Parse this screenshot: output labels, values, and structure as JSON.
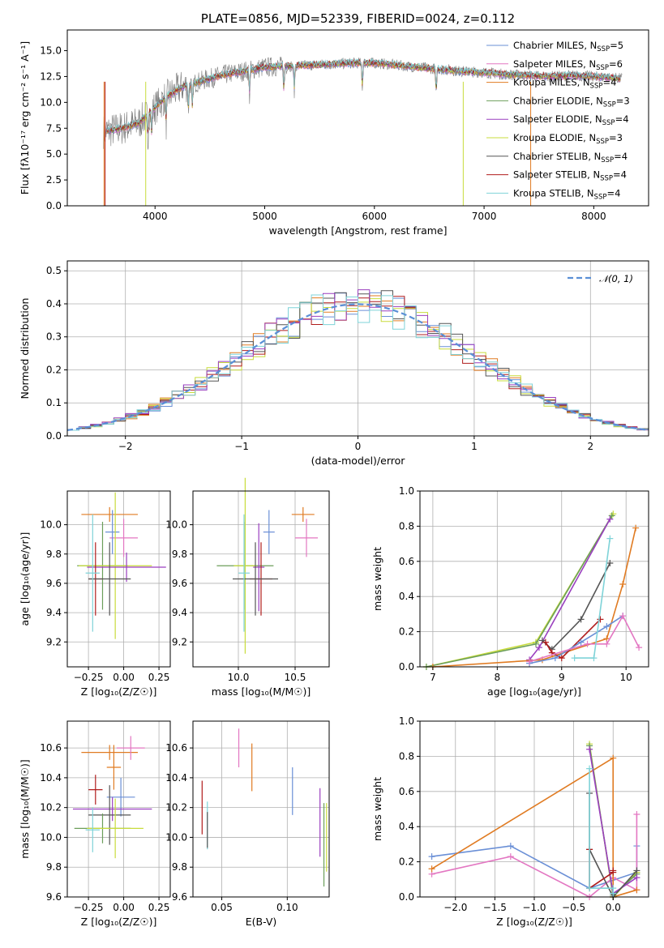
{
  "chart_data": [
    {
      "type": "line",
      "title": "PLATE=0856, MJD=52339, FIBERID=0024, z=0.112",
      "xlabel": "wavelength [Angstrom, rest frame]",
      "ylabel": "Flux [fλ10⁻¹⁷ erg cm⁻² s⁻¹ A⁻¹]",
      "xlim": [
        3200,
        8500
      ],
      "ylim": [
        0,
        17
      ],
      "xticks": [
        4000,
        5000,
        6000,
        7000,
        8000
      ],
      "yticks": [
        0.0,
        2.5,
        5.0,
        7.5,
        10.0,
        12.5,
        15.0
      ],
      "legend_position": "right",
      "spectrum_x": [
        3550,
        3700,
        3850,
        3950,
        4100,
        4250,
        4400,
        4600,
        4800,
        5000,
        5200,
        5400,
        5600,
        5800,
        6000,
        6200,
        6400,
        6600,
        6800,
        7000,
        7200,
        7400,
        7600,
        7800,
        8000,
        8250
      ],
      "spectrum_y": [
        7.2,
        7.5,
        8.0,
        9.0,
        10.5,
        11.5,
        12.0,
        12.6,
        13.0,
        13.4,
        13.5,
        13.6,
        13.7,
        13.8,
        13.8,
        13.6,
        13.4,
        13.2,
        13.0,
        12.9,
        12.7,
        12.6,
        12.5,
        12.6,
        12.5,
        12.3
      ],
      "series": [
        {
          "name": "Chabrier MILES, N",
          "sub": "SSP",
          "suffix": "=5",
          "color": "#6a8fd6"
        },
        {
          "name": "Salpeter MILES, N",
          "sub": "SSP",
          "suffix": "=6",
          "color": "#e377c2"
        },
        {
          "name": "Kroupa MILES, N",
          "sub": "SSP",
          "suffix": "=4",
          "color": "#e07b22"
        },
        {
          "name": "Chabrier ELODIE, N",
          "sub": "SSP",
          "suffix": "=3",
          "color": "#6b9e5a"
        },
        {
          "name": "Salpeter ELODIE, N",
          "sub": "SSP",
          "suffix": "=4",
          "color": "#9a3fbf"
        },
        {
          "name": "Kroupa ELODIE, N",
          "sub": "SSP",
          "suffix": "=3",
          "color": "#c8dc3c"
        },
        {
          "name": "Chabrier STELIB, N",
          "sub": "SSP",
          "suffix": "=4",
          "color": "#555555"
        },
        {
          "name": "Salpeter STELIB, N",
          "sub": "SSP",
          "suffix": "=4",
          "color": "#b01c1c"
        },
        {
          "name": "Kroupa STELIB, N",
          "sub": "SSP",
          "suffix": "=4",
          "color": "#7fd3d8"
        }
      ]
    },
    {
      "type": "histogram",
      "xlabel": "(data-model)/error",
      "ylabel": "Normed distribution",
      "xlim": [
        -2.5,
        2.5
      ],
      "ylim": [
        0,
        0.53
      ],
      "xticks": [
        -2,
        -1,
        0,
        1,
        2
      ],
      "xtick_labels": [
        "−2",
        "−1",
        "0",
        "1",
        "2"
      ],
      "yticks": [
        0.0,
        0.1,
        0.2,
        0.3,
        0.4,
        0.5
      ],
      "bin_width": 0.1,
      "bin_start": -2.5,
      "legend": "𝒩(0, 1)",
      "legend_position": "top-right",
      "gauss_color": "#5a8fd6",
      "hist_colors": [
        "#6a8fd6",
        "#e07b22",
        "#c8dc3c",
        "#b01c1c",
        "#555555",
        "#9a3fbf",
        "#7fd3d8"
      ]
    },
    {
      "type": "scatter-errorbar",
      "xlabel": "Z [log₁₀(Z/Z☉)]",
      "ylabel": "age  [log₁₀(age/yr)]",
      "xlim": [
        -0.4,
        0.33
      ],
      "ylim": [
        9.03,
        10.23
      ],
      "xticks": [
        -0.25,
        0.0,
        0.25
      ],
      "xtick_labels": [
        "−0.25",
        "0.00",
        "0.25"
      ],
      "yticks": [
        9.2,
        9.4,
        9.6,
        9.8,
        10.0
      ],
      "points": [
        {
          "x": -0.1,
          "y": 10.07,
          "xerr": 0.2,
          "yerr": 0.05,
          "color": "#e07b22"
        },
        {
          "x": 0.0,
          "y": 9.91,
          "xerr": 0.1,
          "yerr": 0.13,
          "color": "#e377c2"
        },
        {
          "x": -0.08,
          "y": 9.95,
          "xerr": 0.05,
          "yerr": 0.15,
          "color": "#6a8fd6"
        },
        {
          "x": -0.15,
          "y": 9.72,
          "xerr": 0.18,
          "yerr": 0.3,
          "color": "#6b9e5a"
        },
        {
          "x": -0.06,
          "y": 9.72,
          "xerr": 0.26,
          "yerr": 0.5,
          "color": "#c8dc3c"
        },
        {
          "x": 0.02,
          "y": 9.71,
          "xerr": 0.28,
          "yerr": 0.1,
          "color": "#9a3fbf"
        },
        {
          "x": -0.2,
          "y": 9.63,
          "xerr": 0.05,
          "yerr": 0.25,
          "color": "#b01c1c"
        },
        {
          "x": -0.1,
          "y": 9.63,
          "xerr": 0.15,
          "yerr": 0.25,
          "color": "#555555"
        },
        {
          "x": -0.22,
          "y": 9.67,
          "xerr": 0.05,
          "yerr": 0.4,
          "color": "#7fd3d8"
        }
      ]
    },
    {
      "type": "scatter-errorbar",
      "xlabel": "mass [log₁₀(M/M☉)]",
      "ylabel": "",
      "xlim": [
        9.6,
        10.8
      ],
      "ylim": [
        9.03,
        10.23
      ],
      "xticks": [
        10.0,
        10.5
      ],
      "xtick_labels": [
        "10.0",
        "10.5"
      ],
      "yticks": [
        9.2,
        9.4,
        9.6,
        9.8,
        10.0
      ],
      "points": [
        {
          "x": 10.57,
          "y": 10.07,
          "xerr": 0.1,
          "yerr": 0.05,
          "color": "#e07b22"
        },
        {
          "x": 10.6,
          "y": 9.91,
          "xerr": 0.1,
          "yerr": 0.13,
          "color": "#e377c2"
        },
        {
          "x": 10.27,
          "y": 9.95,
          "xerr": 0.05,
          "yerr": 0.15,
          "color": "#6a8fd6"
        },
        {
          "x": 10.06,
          "y": 9.72,
          "xerr": 0.25,
          "yerr": 0.3,
          "color": "#6b9e5a"
        },
        {
          "x": 10.06,
          "y": 9.72,
          "xerr": 0.1,
          "yerr": 0.6,
          "color": "#c8dc3c"
        },
        {
          "x": 10.18,
          "y": 9.71,
          "xerr": 0.05,
          "yerr": 0.3,
          "color": "#9a3fbf"
        },
        {
          "x": 10.2,
          "y": 9.63,
          "xerr": 0.1,
          "yerr": 0.25,
          "color": "#b01c1c"
        },
        {
          "x": 10.15,
          "y": 9.63,
          "xerr": 0.2,
          "yerr": 0.25,
          "color": "#555555"
        },
        {
          "x": 10.05,
          "y": 9.67,
          "xerr": 0.05,
          "yerr": 0.4,
          "color": "#7fd3d8"
        }
      ]
    },
    {
      "type": "line",
      "xlabel": "age  [log₁₀(age/yr)]",
      "ylabel": "mass weight",
      "xlim": [
        6.8,
        10.35
      ],
      "ylim": [
        0,
        1
      ],
      "xticks": [
        7,
        8,
        9,
        10
      ],
      "yticks": [
        0.0,
        0.2,
        0.4,
        0.6,
        0.8,
        1.0
      ],
      "series": [
        {
          "color": "#c8dc3c",
          "x": [
            6.9,
            8.6,
            9.8
          ],
          "y": [
            0.0,
            0.14,
            0.87
          ]
        },
        {
          "color": "#6b9e5a",
          "x": [
            6.9,
            8.6,
            9.78
          ],
          "y": [
            0.0,
            0.13,
            0.86
          ]
        },
        {
          "color": "#9a3fbf",
          "x": [
            8.5,
            8.65,
            9.75
          ],
          "y": [
            0.04,
            0.11,
            0.84
          ]
        },
        {
          "color": "#e07b22",
          "x": [
            7.0,
            8.7,
            9.7,
            9.95,
            10.15
          ],
          "y": [
            0.0,
            0.04,
            0.16,
            0.47,
            0.79
          ]
        },
        {
          "color": "#555555",
          "x": [
            8.7,
            8.85,
            9.3,
            9.75
          ],
          "y": [
            0.15,
            0.1,
            0.27,
            0.59
          ]
        },
        {
          "color": "#b01c1c",
          "x": [
            8.75,
            8.85,
            9.0,
            9.6
          ],
          "y": [
            0.14,
            0.08,
            0.05,
            0.27
          ]
        },
        {
          "color": "#6a8fd6",
          "x": [
            8.5,
            8.9,
            9.3,
            9.7,
            9.95
          ],
          "y": [
            0.02,
            0.05,
            0.14,
            0.23,
            0.29
          ]
        },
        {
          "color": "#e377c2",
          "x": [
            8.5,
            9.4,
            9.7,
            9.95,
            10.2
          ],
          "y": [
            0.03,
            0.13,
            0.13,
            0.29,
            0.11
          ]
        },
        {
          "color": "#7fd3d8",
          "x": [
            9.2,
            9.5,
            9.75
          ],
          "y": [
            0.05,
            0.05,
            0.73
          ]
        }
      ]
    },
    {
      "type": "scatter-errorbar",
      "xlabel": "Z [log₁₀(Z/Z☉)]",
      "ylabel": "mass [log₁₀(M/M☉)]",
      "xlim": [
        -0.4,
        0.33
      ],
      "ylim": [
        9.6,
        10.78
      ],
      "xticks": [
        -0.25,
        0.0,
        0.25
      ],
      "xtick_labels": [
        "−0.25",
        "0.00",
        "0.25"
      ],
      "yticks": [
        9.6,
        9.8,
        10.0,
        10.2,
        10.4,
        10.6
      ],
      "points": [
        {
          "x": -0.1,
          "y": 10.57,
          "xerr": 0.2,
          "yerr": 0.05,
          "color": "#e07b22"
        },
        {
          "x": 0.05,
          "y": 10.6,
          "xerr": 0.1,
          "yerr": 0.08,
          "color": "#e377c2"
        },
        {
          "x": -0.07,
          "y": 10.47,
          "xerr": 0.05,
          "yerr": 0.15,
          "color": "#e07b22"
        },
        {
          "x": -0.02,
          "y": 10.27,
          "xerr": 0.1,
          "yerr": 0.13,
          "color": "#6a8fd6"
        },
        {
          "x": -0.08,
          "y": 10.19,
          "xerr": 0.28,
          "yerr": 0.08,
          "color": "#9a3fbf"
        },
        {
          "x": -0.2,
          "y": 10.32,
          "xerr": 0.05,
          "yerr": 0.1,
          "color": "#b01c1c"
        },
        {
          "x": -0.1,
          "y": 10.15,
          "xerr": 0.15,
          "yerr": 0.2,
          "color": "#555555"
        },
        {
          "x": -0.15,
          "y": 10.06,
          "xerr": 0.2,
          "yerr": 0.1,
          "color": "#6b9e5a"
        },
        {
          "x": -0.06,
          "y": 10.06,
          "xerr": 0.2,
          "yerr": 0.2,
          "color": "#c8dc3c"
        },
        {
          "x": -0.22,
          "y": 10.05,
          "xerr": 0.05,
          "yerr": 0.15,
          "color": "#7fd3d8"
        }
      ]
    },
    {
      "type": "scatter-errorbar",
      "xlabel": "E(B-V)",
      "ylabel": "",
      "xlim": [
        0.028,
        0.132
      ],
      "ylim": [
        9.6,
        10.78
      ],
      "xticks": [
        0.05,
        0.1
      ],
      "xtick_labels": [
        "0.05",
        "0.10"
      ],
      "yticks": [
        9.6,
        9.8,
        10.0,
        10.2,
        10.4,
        10.6
      ],
      "points": [
        {
          "x": 0.063,
          "y": 10.6,
          "yerr": 0.13,
          "color": "#e377c2"
        },
        {
          "x": 0.073,
          "y": 10.47,
          "yerr": 0.16,
          "color": "#e07b22"
        },
        {
          "x": 0.104,
          "y": 10.31,
          "yerr": 0.16,
          "color": "#6a8fd6"
        },
        {
          "x": 0.035,
          "y": 10.2,
          "yerr": 0.18,
          "color": "#b01c1c"
        },
        {
          "x": 0.039,
          "y": 10.08,
          "yerr": 0.16,
          "color": "#7fd3d8"
        },
        {
          "x": 0.039,
          "y": 10.05,
          "yerr": 0.12,
          "color": "#555555"
        },
        {
          "x": 0.125,
          "y": 10.1,
          "yerr": 0.23,
          "color": "#9a3fbf"
        },
        {
          "x": 0.13,
          "y": 10.0,
          "yerr": 0.23,
          "color": "#c8dc3c"
        },
        {
          "x": 0.128,
          "y": 9.95,
          "yerr": 0.28,
          "color": "#6b9e5a"
        }
      ]
    },
    {
      "type": "line",
      "xlabel": "Z [log₁₀(Z/Z☉)]",
      "ylabel": "mass weight",
      "xlim": [
        -2.45,
        0.45
      ],
      "ylim": [
        0,
        1
      ],
      "xticks": [
        -2.0,
        -1.5,
        -1.0,
        -0.5,
        0.0
      ],
      "xtick_labels": [
        "−2.0",
        "−1.5",
        "−1.0",
        "−0.5",
        "0.0"
      ],
      "yticks": [
        0.0,
        0.2,
        0.4,
        0.6,
        0.8,
        1.0
      ],
      "series": [
        {
          "color": "#6a8fd6",
          "x": [
            -2.3,
            -1.3,
            -0.3,
            0.3,
            0.3
          ],
          "y": [
            0.23,
            0.29,
            0.05,
            0.14,
            0.29
          ]
        },
        {
          "color": "#e377c2",
          "x": [
            -2.3,
            -1.3,
            -0.3,
            0.0,
            0.3,
            0.3
          ],
          "y": [
            0.13,
            0.23,
            0.0,
            0.11,
            0.04,
            0.47
          ]
        },
        {
          "color": "#e07b22",
          "x": [
            -2.3,
            0.0,
            0.0,
            0.3
          ],
          "y": [
            0.16,
            0.79,
            0.0,
            0.04
          ]
        },
        {
          "color": "#c8dc3c",
          "x": [
            -0.3,
            0.0,
            0.3
          ],
          "y": [
            0.87,
            0.0,
            0.14
          ]
        },
        {
          "color": "#6b9e5a",
          "x": [
            -0.3,
            0.0,
            0.3
          ],
          "y": [
            0.86,
            0.01,
            0.13
          ]
        },
        {
          "color": "#9a3fbf",
          "x": [
            -0.3,
            0.0,
            0.3
          ],
          "y": [
            0.84,
            0.02,
            0.11
          ]
        },
        {
          "color": "#555555",
          "x": [
            -0.3,
            -0.3,
            0.0,
            0.3
          ],
          "y": [
            0.59,
            0.27,
            0.0,
            0.15
          ]
        },
        {
          "color": "#b01c1c",
          "x": [
            -0.3,
            -0.3,
            0.0,
            0.0
          ],
          "y": [
            0.27,
            0.05,
            0.14,
            0.15
          ]
        },
        {
          "color": "#7fd3d8",
          "x": [
            -0.3,
            -0.3,
            0.0,
            0.0
          ],
          "y": [
            0.73,
            0.05,
            0.05,
            0.02
          ]
        }
      ]
    }
  ]
}
